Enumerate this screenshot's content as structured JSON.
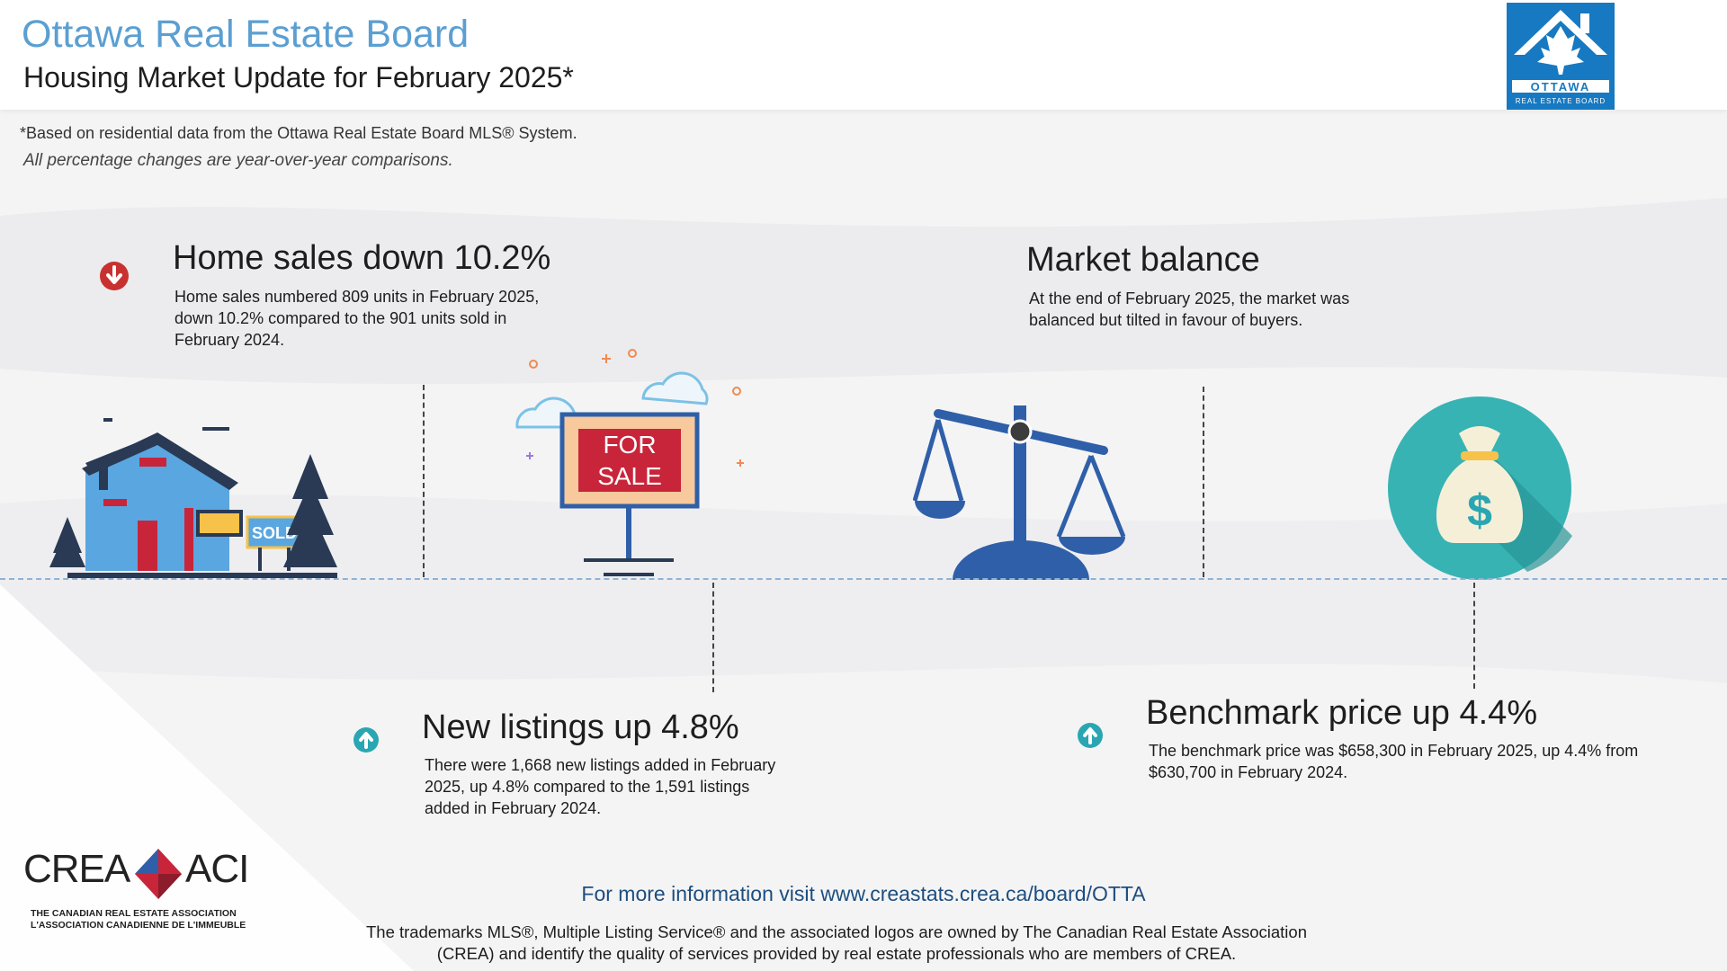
{
  "header": {
    "title": "Ottawa Real Estate Board",
    "subtitle": "Housing Market Update for February 2025*",
    "logo_word": "OTTAWA",
    "logo_tag": "REAL ESTATE BOARD"
  },
  "notes": {
    "footnote": "*Based on residential data from the Ottawa Real Estate Board MLS® System.",
    "yoy": "All percentage changes are year-over-year comparisons."
  },
  "home_sales": {
    "title": "Home sales down 10.2%",
    "body": [
      "Home sales numbered 809 units in February 2025,",
      "down 10.2% compared to the 901 units sold in",
      "February 2024."
    ],
    "sign_label": "SOLD"
  },
  "market_balance": {
    "title": "Market balance",
    "body": [
      "At the end of February 2025, the market was",
      "balanced but tilted in favour of buyers."
    ]
  },
  "new_listings": {
    "title": "New listings up 4.8%",
    "body": [
      "There were 1,668 new listings added in February",
      "2025, up 4.8% compared to the 1,591 listings",
      "added in February 2024."
    ],
    "sign_line1": "FOR",
    "sign_line2": "SALE"
  },
  "benchmark": {
    "title": "Benchmark price up 4.4%",
    "body": [
      "The benchmark price was $658,300 in February 2025, up 4.4% from",
      "$630,700 in February 2024."
    ],
    "bag_symbol": "$"
  },
  "footer": {
    "info": "For more information visit www.creastats.crea.ca/board/OTTA",
    "trademark": [
      "The trademarks MLS®, Multiple Listing Service® and the associated logos are owned by The Canadian Real Estate Association",
      "(CREA) and identify the quality of services provided by real estate professionals who are members of CREA."
    ],
    "crea_left": "CREA",
    "crea_right": "ACI",
    "crea_tag_en": "THE CANADIAN REAL ESTATE ASSOCIATION",
    "crea_tag_fr": "L'ASSOCIATION CANADIENNE DE L'IMMEUBLE"
  },
  "colors": {
    "title_blue": "#5b9fd2",
    "down_red": "#c8312f",
    "up_teal": "#2aa6b3",
    "scale_blue": "#2f5fa8",
    "sign_red": "#c8253a",
    "coin_teal": "#37b3b4"
  },
  "icons": {
    "down_arrow": "down-arrow-icon",
    "up_arrow": "up-arrow-icon",
    "house": "house-sold-icon",
    "sign": "for-sale-sign-icon",
    "scale": "balance-scale-icon",
    "money": "money-bag-icon"
  }
}
